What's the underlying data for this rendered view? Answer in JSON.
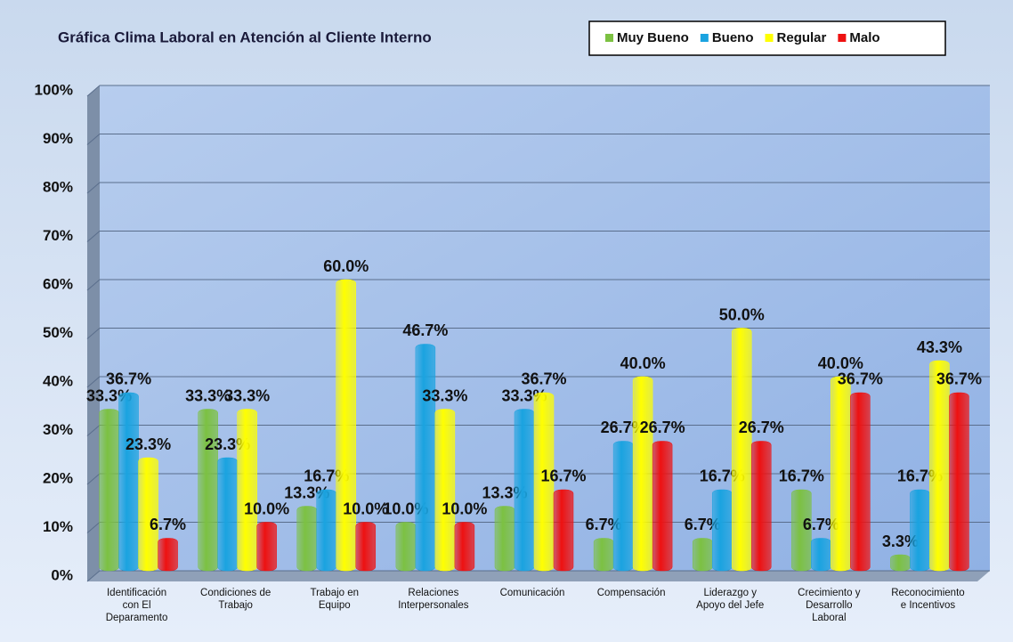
{
  "chart_data": {
    "type": "bar",
    "title": "Gráfica Clima Laboral en Atención al Cliente Interno",
    "categories": [
      "Identificación\ncon El\nDeparamento",
      "Condiciones de\nTrabajo",
      "Trabajo en\nEquipo",
      "Relaciones\nInterpersonales",
      "Comunicación",
      "Compensación",
      "Liderazgo y\nApoyo del Jefe",
      "Crecimiento y\nDesarrollo\nLaboral",
      "Reconocimiento\ne Incentivos"
    ],
    "series": [
      {
        "name": "Muy Bueno",
        "color": "#7cc142",
        "values": [
          33.3,
          33.3,
          13.3,
          10.0,
          13.3,
          6.7,
          6.7,
          16.7,
          3.3
        ],
        "value_labels": [
          "33.3%",
          "33.3%",
          "13.3%",
          "10.0%",
          "13.3%",
          "6.7%",
          "6.7%",
          "16.7%",
          "3.3%"
        ]
      },
      {
        "name": "Bueno",
        "color": "#1aa3e0",
        "values": [
          36.7,
          23.3,
          16.7,
          46.7,
          33.3,
          26.7,
          16.7,
          6.7,
          16.7
        ],
        "value_labels": [
          "36.7%",
          "23.3%",
          "16.7%",
          "46.7%",
          "33.3%",
          "26.7%",
          "16.7%",
          "6.7%",
          "16.7%"
        ]
      },
      {
        "name": "Regular",
        "color": "#ffff00",
        "values": [
          23.3,
          33.3,
          60.0,
          33.3,
          36.7,
          40.0,
          50.0,
          40.0,
          43.3
        ],
        "value_labels": [
          "23.3%",
          "33.3%",
          "60.0%",
          "33.3%",
          "36.7%",
          "40.0%",
          "50.0%",
          "40.0%",
          "43.3%"
        ]
      },
      {
        "name": "Malo",
        "color": "#ee1111",
        "values": [
          6.7,
          10.0,
          10.0,
          10.0,
          16.7,
          26.7,
          26.7,
          36.7,
          36.7
        ],
        "value_labels": [
          "6.7%",
          "10.0%",
          "10.0%",
          "10.0%",
          "16.7%",
          "26.7%",
          "26.7%",
          "36.7%",
          "36.7%"
        ]
      }
    ],
    "ylim": [
      0,
      100
    ],
    "yticks": [
      {
        "value": 0,
        "label": "0%"
      },
      {
        "value": 10,
        "label": "10%"
      },
      {
        "value": 20,
        "label": "20%"
      },
      {
        "value": 30,
        "label": "30%"
      },
      {
        "value": 40,
        "label": "40%"
      },
      {
        "value": 50,
        "label": "50%"
      },
      {
        "value": 60,
        "label": "60%"
      },
      {
        "value": 70,
        "label": "70%"
      },
      {
        "value": 80,
        "label": "80%"
      },
      {
        "value": 90,
        "label": "90%"
      },
      {
        "value": 100,
        "label": "100%"
      }
    ],
    "grid": true,
    "legend": "top-right"
  }
}
